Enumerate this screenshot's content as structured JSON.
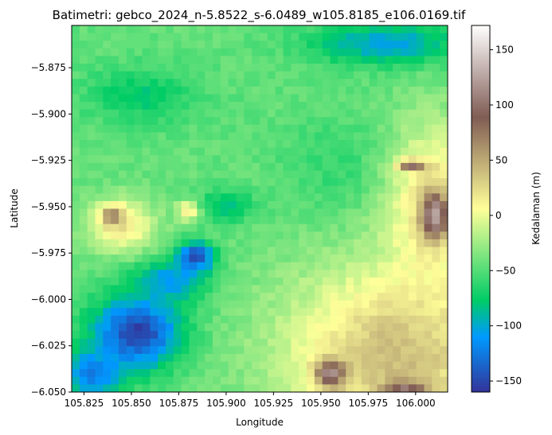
{
  "chart_data": {
    "type": "heatmap",
    "title": "Batimetri: gebco_2024_n-5.8522_s-6.0489_w105.8185_e106.0169.tif",
    "xlabel": "Longitude",
    "ylabel": "Latitude",
    "colorbar_label": "Kedalaman (m)",
    "xlim": [
      105.8185,
      106.0169
    ],
    "ylim": [
      -6.05,
      -5.8522
    ],
    "x_ticks": [
      105.825,
      105.85,
      105.875,
      105.9,
      105.925,
      105.95,
      105.975,
      106.0
    ],
    "x_tick_labels": [
      "105.825",
      "105.850",
      "105.875",
      "105.900",
      "105.925",
      "105.950",
      "105.975",
      "106.000"
    ],
    "y_ticks": [
      -5.875,
      -5.9,
      -5.925,
      -5.95,
      -5.975,
      -6.0,
      -6.025,
      -6.05
    ],
    "y_tick_labels": [
      "−5.875",
      "−5.900",
      "−5.925",
      "−5.950",
      "−5.975",
      "−6.000",
      "−6.025",
      "−6.050"
    ],
    "colorbar_range": [
      -160,
      172
    ],
    "colorbar_ticks": [
      150,
      100,
      50,
      0,
      -50,
      -100,
      -150
    ],
    "colorbar_tick_labels": [
      "150",
      "100",
      "50",
      "0",
      "−50",
      "−100",
      "−150"
    ],
    "colormap": "terrain",
    "colormap_stops": [
      [
        0.0,
        "#333399"
      ],
      [
        0.15,
        "#0099ff"
      ],
      [
        0.25,
        "#00cc66"
      ],
      [
        0.5,
        "#ffff99"
      ],
      [
        0.75,
        "#805c54"
      ],
      [
        1.0,
        "#ffffff"
      ]
    ],
    "grid": false,
    "grid_cols": 48,
    "grid_rows": 48,
    "features": [
      {
        "kind": "base",
        "depth": -45
      },
      {
        "kind": "blob",
        "lon": 105.853,
        "lat": -6.018,
        "rx": 0.024,
        "ry": 0.02,
        "depth": -155
      },
      {
        "kind": "blob",
        "lon": 105.83,
        "lat": -6.04,
        "rx": 0.016,
        "ry": 0.013,
        "depth": -125
      },
      {
        "kind": "blob",
        "lon": 105.87,
        "lat": -5.99,
        "rx": 0.02,
        "ry": 0.012,
        "depth": -110
      },
      {
        "kind": "blob",
        "lon": 105.884,
        "lat": -5.977,
        "rx": 0.01,
        "ry": 0.008,
        "depth": -150
      },
      {
        "kind": "blob",
        "lon": 105.9,
        "lat": -5.95,
        "rx": 0.016,
        "ry": 0.009,
        "depth": -85
      },
      {
        "kind": "blob",
        "lon": 105.985,
        "lat": -5.862,
        "rx": 0.04,
        "ry": 0.012,
        "depth": -105
      },
      {
        "kind": "blob",
        "lon": 105.855,
        "lat": -5.89,
        "rx": 0.03,
        "ry": 0.015,
        "depth": -78
      },
      {
        "kind": "blob",
        "lon": 105.96,
        "lat": -5.93,
        "rx": 0.03,
        "ry": 0.028,
        "depth": -62
      },
      {
        "kind": "blob",
        "lon": 105.845,
        "lat": -5.96,
        "rx": 0.018,
        "ry": 0.015,
        "depth": 18
      },
      {
        "kind": "blob",
        "lon": 105.84,
        "lat": -5.955,
        "rx": 0.006,
        "ry": 0.005,
        "depth": 80
      },
      {
        "kind": "blob",
        "lon": 105.88,
        "lat": -5.952,
        "rx": 0.006,
        "ry": 0.006,
        "depth": 12
      },
      {
        "kind": "blob",
        "lon": 105.99,
        "lat": -6.03,
        "rx": 0.06,
        "ry": 0.05,
        "depth": 40
      },
      {
        "kind": "blob",
        "lon": 106.01,
        "lat": -5.95,
        "rx": 0.025,
        "ry": 0.045,
        "depth": 25
      },
      {
        "kind": "blob",
        "lon": 106.01,
        "lat": -5.955,
        "rx": 0.007,
        "ry": 0.012,
        "depth": 130
      },
      {
        "kind": "blob",
        "lon": 105.955,
        "lat": -6.04,
        "rx": 0.008,
        "ry": 0.007,
        "depth": 120
      },
      {
        "kind": "blob",
        "lon": 105.995,
        "lat": -6.048,
        "rx": 0.012,
        "ry": 0.004,
        "depth": 100
      },
      {
        "kind": "blob",
        "lon": 105.998,
        "lat": -5.928,
        "rx": 0.008,
        "ry": 0.003,
        "depth": 95
      }
    ]
  }
}
